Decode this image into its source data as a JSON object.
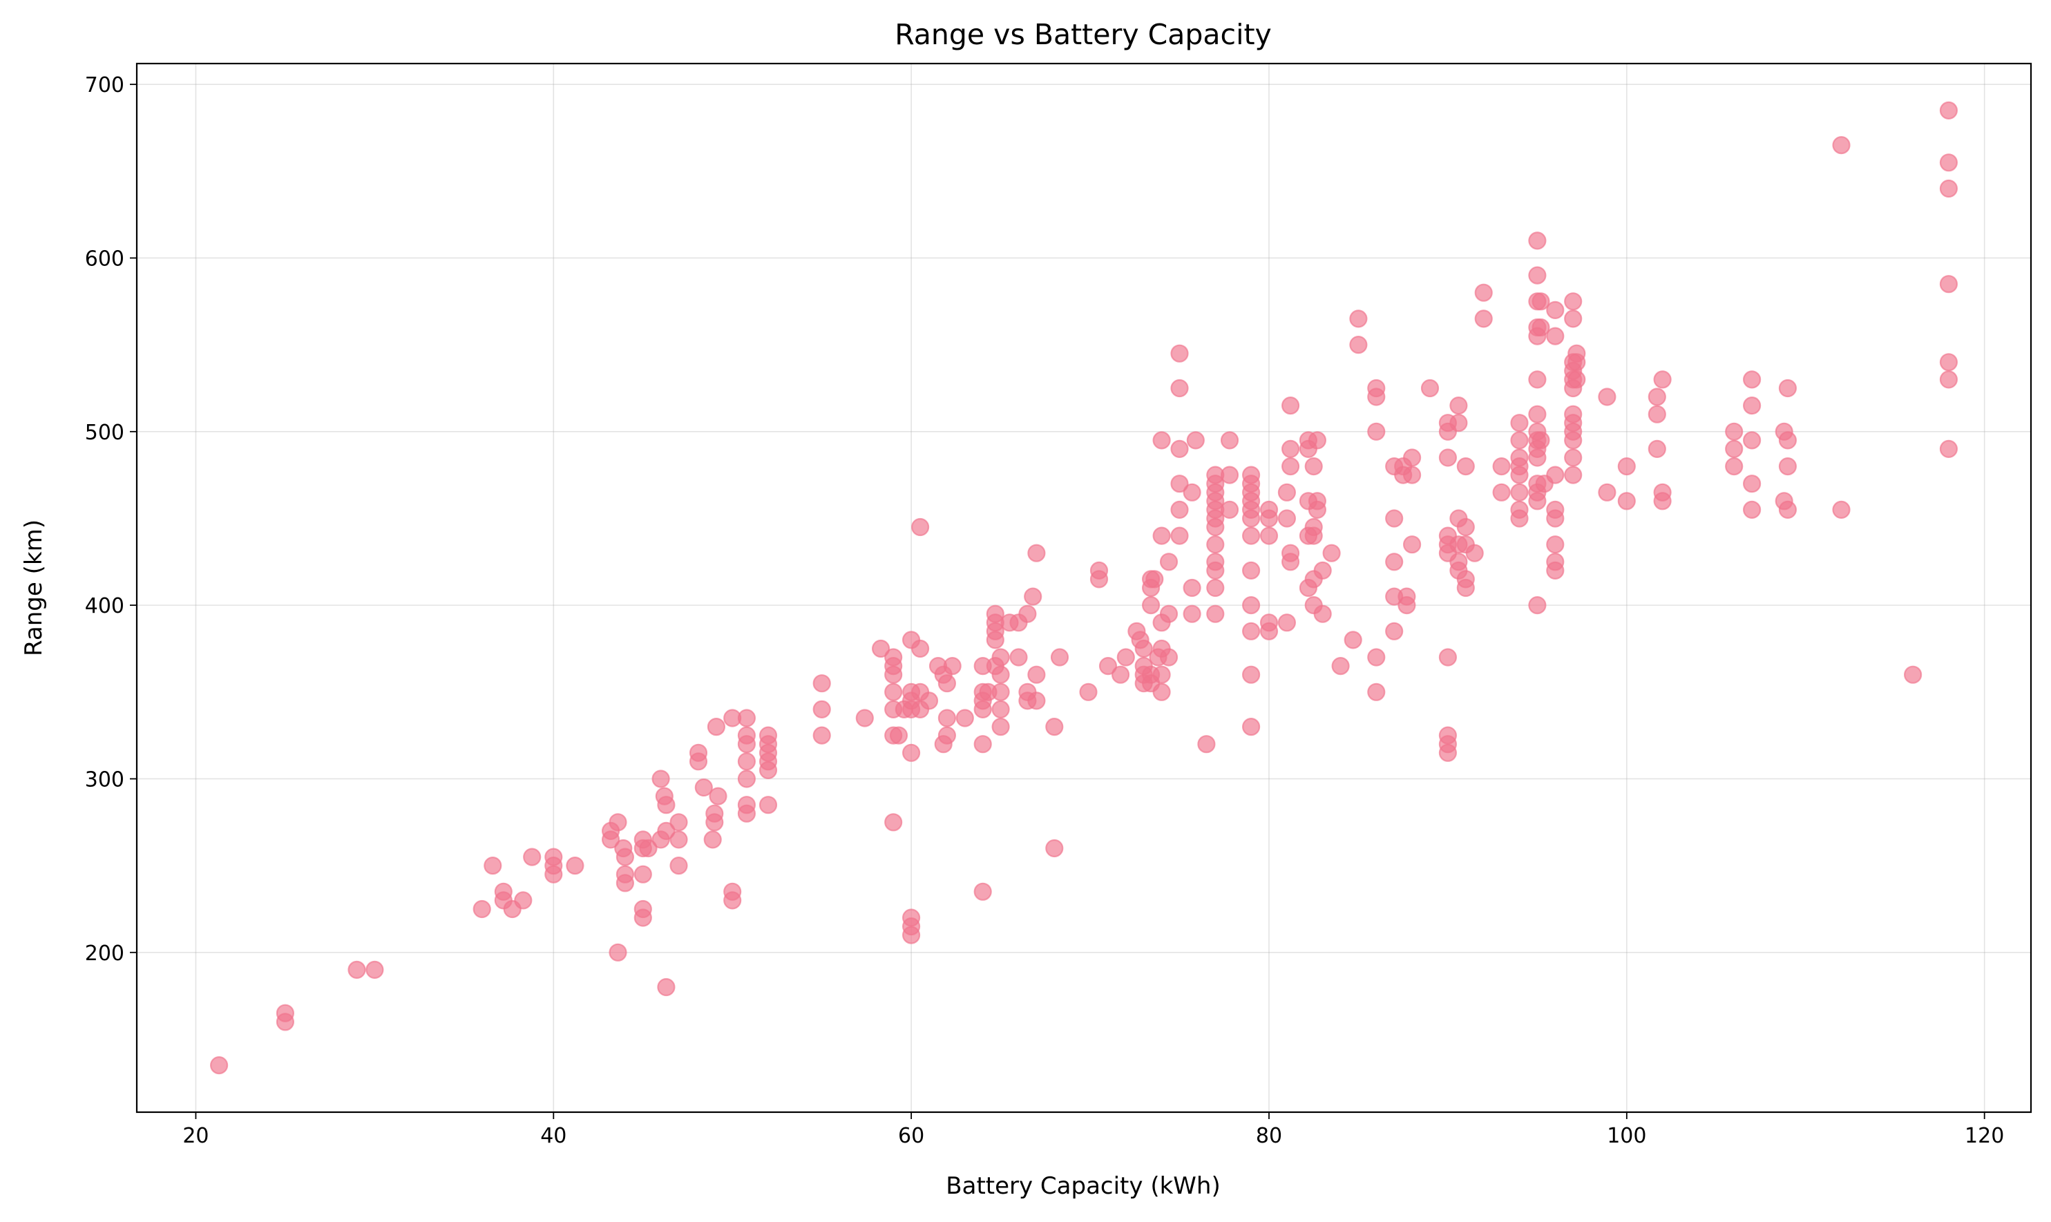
{
  "chart_data": {
    "type": "scatter",
    "title": "Range vs Battery Capacity",
    "xlabel": "Battery Capacity (kWh)",
    "ylabel": "Range (km)",
    "xlim": [
      16.7,
      122.6
    ],
    "ylim": [
      108,
      712
    ],
    "xticks": [
      20,
      40,
      60,
      80,
      100,
      120
    ],
    "yticks": [
      200,
      300,
      400,
      500,
      600,
      700
    ],
    "grid": true,
    "legend": "none",
    "marker_color": "#f0738c",
    "marker_opacity": 0.65,
    "points": [
      [
        21.3,
        135
      ],
      [
        25,
        165
      ],
      [
        25,
        160
      ],
      [
        29,
        190
      ],
      [
        30,
        190
      ],
      [
        36,
        225
      ],
      [
        36.6,
        250
      ],
      [
        37.2,
        235
      ],
      [
        37.2,
        230
      ],
      [
        37.7,
        225
      ],
      [
        38.3,
        230
      ],
      [
        38.8,
        255
      ],
      [
        40,
        255
      ],
      [
        40,
        250
      ],
      [
        40,
        245
      ],
      [
        41.2,
        250
      ],
      [
        43.2,
        270
      ],
      [
        43.2,
        265
      ],
      [
        43.6,
        275
      ],
      [
        43.6,
        200
      ],
      [
        43.9,
        260
      ],
      [
        44,
        255
      ],
      [
        44,
        245
      ],
      [
        44,
        240
      ],
      [
        45,
        265
      ],
      [
        45,
        260
      ],
      [
        45,
        225
      ],
      [
        45,
        220
      ],
      [
        45,
        245
      ],
      [
        45.3,
        260
      ],
      [
        46,
        300
      ],
      [
        46,
        265
      ],
      [
        46.2,
        290
      ],
      [
        46.3,
        285
      ],
      [
        46.3,
        270
      ],
      [
        46.3,
        180
      ],
      [
        47,
        275
      ],
      [
        47,
        265
      ],
      [
        47,
        250
      ],
      [
        48.1,
        315
      ],
      [
        48.1,
        310
      ],
      [
        48.4,
        295
      ],
      [
        48.9,
        265
      ],
      [
        49,
        280
      ],
      [
        49,
        275
      ],
      [
        49.1,
        330
      ],
      [
        49.2,
        290
      ],
      [
        50,
        335
      ],
      [
        50,
        235
      ],
      [
        50,
        230
      ],
      [
        50.8,
        335
      ],
      [
        50.8,
        325
      ],
      [
        50.8,
        320
      ],
      [
        50.8,
        310
      ],
      [
        50.8,
        300
      ],
      [
        50.8,
        285
      ],
      [
        50.8,
        280
      ],
      [
        52,
        325
      ],
      [
        52,
        320
      ],
      [
        52,
        315
      ],
      [
        52,
        310
      ],
      [
        52,
        305
      ],
      [
        52,
        285
      ],
      [
        55,
        355
      ],
      [
        55,
        340
      ],
      [
        55,
        325
      ],
      [
        57.4,
        335
      ],
      [
        58.3,
        375
      ],
      [
        59,
        370
      ],
      [
        59,
        365
      ],
      [
        59,
        360
      ],
      [
        59,
        350
      ],
      [
        59,
        340
      ],
      [
        59,
        325
      ],
      [
        59,
        275
      ],
      [
        59.3,
        325
      ],
      [
        59.6,
        340
      ],
      [
        60,
        380
      ],
      [
        60,
        350
      ],
      [
        60,
        345
      ],
      [
        60,
        340
      ],
      [
        60,
        315
      ],
      [
        60,
        220
      ],
      [
        60,
        215
      ],
      [
        60,
        210
      ],
      [
        60.5,
        445
      ],
      [
        60.5,
        375
      ],
      [
        60.5,
        350
      ],
      [
        60.5,
        340
      ],
      [
        61,
        345
      ],
      [
        61.5,
        365
      ],
      [
        61.8,
        360
      ],
      [
        61.8,
        320
      ],
      [
        62,
        355
      ],
      [
        62,
        335
      ],
      [
        62,
        325
      ],
      [
        62.3,
        365
      ],
      [
        63,
        335
      ],
      [
        64,
        365
      ],
      [
        64,
        350
      ],
      [
        64,
        345
      ],
      [
        64,
        340
      ],
      [
        64,
        320
      ],
      [
        64,
        235
      ],
      [
        64.3,
        350
      ],
      [
        64.7,
        395
      ],
      [
        64.7,
        390
      ],
      [
        64.7,
        385
      ],
      [
        64.7,
        380
      ],
      [
        64.7,
        365
      ],
      [
        65,
        370
      ],
      [
        65,
        360
      ],
      [
        65,
        350
      ],
      [
        65,
        340
      ],
      [
        65,
        330
      ],
      [
        65.5,
        390
      ],
      [
        66,
        390
      ],
      [
        66,
        370
      ],
      [
        66.5,
        395
      ],
      [
        66.5,
        350
      ],
      [
        66.5,
        345
      ],
      [
        66.8,
        405
      ],
      [
        67,
        430
      ],
      [
        67,
        360
      ],
      [
        67,
        345
      ],
      [
        68,
        330
      ],
      [
        68,
        260
      ],
      [
        68.3,
        370
      ],
      [
        69.9,
        350
      ],
      [
        70.5,
        420
      ],
      [
        70.5,
        415
      ],
      [
        71,
        365
      ],
      [
        71.7,
        360
      ],
      [
        72,
        370
      ],
      [
        72.6,
        385
      ],
      [
        72.8,
        380
      ],
      [
        73,
        375
      ],
      [
        73,
        365
      ],
      [
        73,
        360
      ],
      [
        73,
        355
      ],
      [
        73.4,
        415
      ],
      [
        73.4,
        410
      ],
      [
        73.4,
        400
      ],
      [
        73.4,
        360
      ],
      [
        73.4,
        355
      ],
      [
        73.6,
        415
      ],
      [
        73.8,
        370
      ],
      [
        74,
        495
      ],
      [
        74,
        440
      ],
      [
        74,
        390
      ],
      [
        74,
        375
      ],
      [
        74,
        360
      ],
      [
        74,
        350
      ],
      [
        74.4,
        425
      ],
      [
        74.4,
        395
      ],
      [
        74.4,
        370
      ],
      [
        75,
        545
      ],
      [
        75,
        525
      ],
      [
        75,
        490
      ],
      [
        75,
        470
      ],
      [
        75,
        455
      ],
      [
        75,
        440
      ],
      [
        75.7,
        465
      ],
      [
        75.7,
        410
      ],
      [
        75.7,
        395
      ],
      [
        75.9,
        495
      ],
      [
        76.5,
        320
      ],
      [
        77,
        475
      ],
      [
        77,
        470
      ],
      [
        77,
        465
      ],
      [
        77,
        460
      ],
      [
        77,
        455
      ],
      [
        77,
        450
      ],
      [
        77,
        445
      ],
      [
        77,
        435
      ],
      [
        77,
        425
      ],
      [
        77,
        420
      ],
      [
        77,
        410
      ],
      [
        77,
        395
      ],
      [
        77.8,
        495
      ],
      [
        77.8,
        475
      ],
      [
        77.8,
        455
      ],
      [
        79,
        475
      ],
      [
        79,
        470
      ],
      [
        79,
        465
      ],
      [
        79,
        460
      ],
      [
        79,
        455
      ],
      [
        79,
        450
      ],
      [
        79,
        440
      ],
      [
        79,
        420
      ],
      [
        79,
        400
      ],
      [
        79,
        385
      ],
      [
        79,
        360
      ],
      [
        79,
        330
      ],
      [
        80,
        455
      ],
      [
        80,
        450
      ],
      [
        80,
        440
      ],
      [
        80,
        390
      ],
      [
        80,
        385
      ],
      [
        81,
        465
      ],
      [
        81,
        450
      ],
      [
        81,
        390
      ],
      [
        81.2,
        515
      ],
      [
        81.2,
        490
      ],
      [
        81.2,
        480
      ],
      [
        81.2,
        430
      ],
      [
        81.2,
        425
      ],
      [
        82.2,
        495
      ],
      [
        82.2,
        490
      ],
      [
        82.2,
        460
      ],
      [
        82.2,
        440
      ],
      [
        82.2,
        410
      ],
      [
        82.5,
        480
      ],
      [
        82.5,
        445
      ],
      [
        82.5,
        440
      ],
      [
        82.5,
        415
      ],
      [
        82.5,
        400
      ],
      [
        82.7,
        495
      ],
      [
        82.7,
        460
      ],
      [
        82.7,
        455
      ],
      [
        83,
        420
      ],
      [
        83,
        395
      ],
      [
        83.5,
        430
      ],
      [
        84,
        365
      ],
      [
        84.7,
        380
      ],
      [
        85,
        565
      ],
      [
        85,
        550
      ],
      [
        86,
        525
      ],
      [
        86,
        520
      ],
      [
        86,
        500
      ],
      [
        86,
        370
      ],
      [
        86,
        350
      ],
      [
        87,
        480
      ],
      [
        87,
        450
      ],
      [
        87,
        425
      ],
      [
        87,
        405
      ],
      [
        87,
        385
      ],
      [
        87.5,
        480
      ],
      [
        87.5,
        475
      ],
      [
        87.7,
        405
      ],
      [
        87.7,
        400
      ],
      [
        88,
        485
      ],
      [
        88,
        475
      ],
      [
        88,
        435
      ],
      [
        89,
        525
      ],
      [
        90,
        505
      ],
      [
        90,
        500
      ],
      [
        90,
        485
      ],
      [
        90,
        440
      ],
      [
        90,
        435
      ],
      [
        90,
        430
      ],
      [
        90,
        370
      ],
      [
        90,
        325
      ],
      [
        90,
        320
      ],
      [
        90,
        315
      ],
      [
        90.6,
        515
      ],
      [
        90.6,
        505
      ],
      [
        90.6,
        450
      ],
      [
        90.6,
        435
      ],
      [
        90.6,
        425
      ],
      [
        90.6,
        420
      ],
      [
        91,
        480
      ],
      [
        91,
        445
      ],
      [
        91,
        435
      ],
      [
        91,
        415
      ],
      [
        91,
        410
      ],
      [
        91.5,
        430
      ],
      [
        92,
        580
      ],
      [
        92,
        565
      ],
      [
        93,
        480
      ],
      [
        93,
        465
      ],
      [
        94,
        505
      ],
      [
        94,
        495
      ],
      [
        94,
        485
      ],
      [
        94,
        480
      ],
      [
        94,
        475
      ],
      [
        94,
        465
      ],
      [
        94,
        455
      ],
      [
        94,
        450
      ],
      [
        95,
        610
      ],
      [
        95,
        590
      ],
      [
        95,
        575
      ],
      [
        95,
        560
      ],
      [
        95,
        555
      ],
      [
        95,
        530
      ],
      [
        95,
        510
      ],
      [
        95,
        500
      ],
      [
        95,
        495
      ],
      [
        95,
        490
      ],
      [
        95,
        485
      ],
      [
        95,
        470
      ],
      [
        95,
        465
      ],
      [
        95,
        460
      ],
      [
        95,
        400
      ],
      [
        95.2,
        575
      ],
      [
        95.2,
        560
      ],
      [
        95.2,
        495
      ],
      [
        95.4,
        470
      ],
      [
        96,
        570
      ],
      [
        96,
        555
      ],
      [
        96,
        475
      ],
      [
        96,
        455
      ],
      [
        96,
        450
      ],
      [
        96,
        435
      ],
      [
        96,
        425
      ],
      [
        96,
        420
      ],
      [
        97,
        575
      ],
      [
        97,
        565
      ],
      [
        97,
        540
      ],
      [
        97,
        535
      ],
      [
        97,
        530
      ],
      [
        97,
        525
      ],
      [
        97,
        510
      ],
      [
        97,
        505
      ],
      [
        97,
        500
      ],
      [
        97,
        495
      ],
      [
        97,
        485
      ],
      [
        97,
        475
      ],
      [
        97.2,
        545
      ],
      [
        97.2,
        540
      ],
      [
        97.2,
        530
      ],
      [
        98.9,
        520
      ],
      [
        98.9,
        465
      ],
      [
        100,
        480
      ],
      [
        100,
        460
      ],
      [
        101.7,
        520
      ],
      [
        101.7,
        510
      ],
      [
        101.7,
        490
      ],
      [
        102,
        530
      ],
      [
        102,
        465
      ],
      [
        102,
        460
      ],
      [
        106,
        500
      ],
      [
        106,
        490
      ],
      [
        106,
        480
      ],
      [
        107,
        530
      ],
      [
        107,
        515
      ],
      [
        107,
        495
      ],
      [
        107,
        470
      ],
      [
        107,
        455
      ],
      [
        108.8,
        500
      ],
      [
        108.8,
        460
      ],
      [
        109,
        525
      ],
      [
        109,
        495
      ],
      [
        109,
        480
      ],
      [
        109,
        455
      ],
      [
        112,
        665
      ],
      [
        112,
        455
      ],
      [
        116,
        360
      ],
      [
        118,
        685
      ],
      [
        118,
        655
      ],
      [
        118,
        640
      ],
      [
        118,
        585
      ],
      [
        118,
        540
      ],
      [
        118,
        530
      ],
      [
        118,
        490
      ]
    ]
  }
}
